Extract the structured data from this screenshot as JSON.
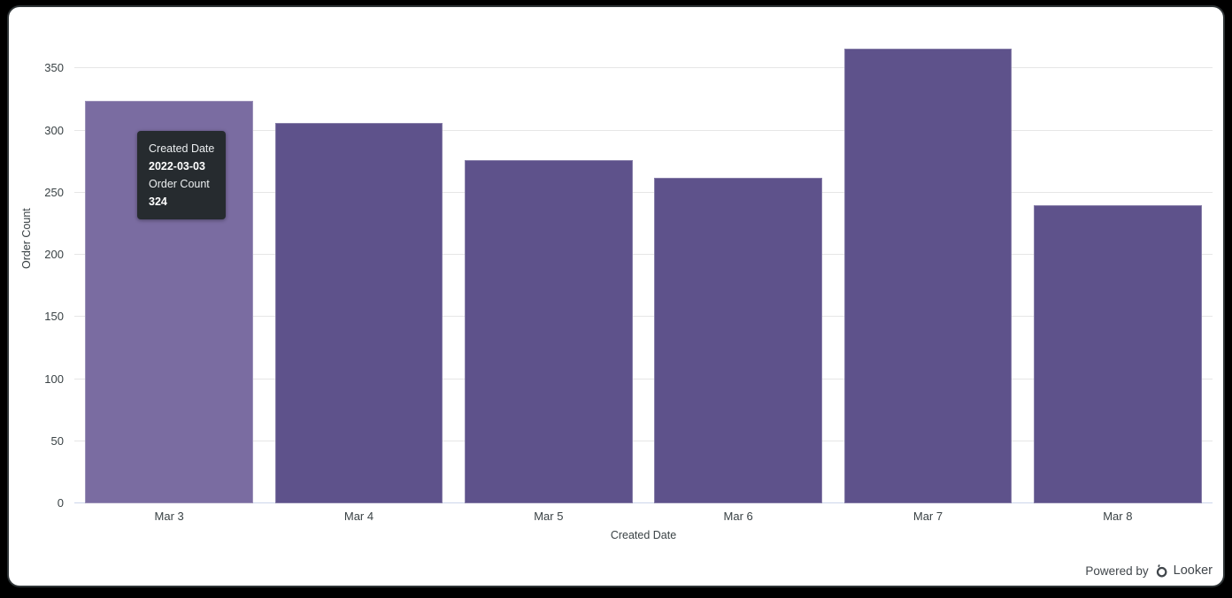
{
  "window": {
    "background": "#000000",
    "card_background": "#ffffff"
  },
  "chart_data": {
    "type": "bar",
    "title": "",
    "categories": [
      "Mar 3",
      "Mar 4",
      "Mar 5",
      "Mar 6",
      "Mar 7",
      "Mar 8"
    ],
    "values": [
      324,
      306,
      276,
      262,
      366,
      240
    ],
    "xlabel": "Created Date",
    "ylabel": "Order Count",
    "ylim": [
      0,
      378
    ],
    "yticks": [
      0,
      50,
      100,
      150,
      200,
      250,
      300,
      350
    ],
    "grid": true,
    "legend_position": "none",
    "highlighted_index": 0
  },
  "tooltip": {
    "field1_label": "Created Date",
    "field1_value": "2022-03-03",
    "field2_label": "Order Count",
    "field2_value": "324"
  },
  "footer": {
    "powered_by": "Powered by",
    "brand": "Looker"
  },
  "colors": {
    "bar": "#5E528B",
    "bar_highlight": "#7A6CA1",
    "gridline": "#e6e6e6",
    "axis_line": "#ccd6eb",
    "label_text": "#3A4245",
    "tooltip_bg": "#262B2F",
    "tooltip_text": "#ffffff",
    "footer_text": "#40464B"
  }
}
